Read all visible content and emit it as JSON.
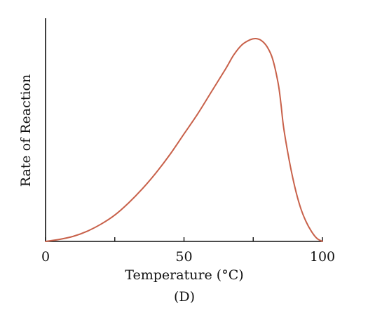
{
  "chart_data": {
    "type": "line",
    "title": "",
    "xlabel": "Temperature (°C)",
    "ylabel": "Rate of Reaction",
    "caption": "(D)",
    "xlim": [
      0,
      100
    ],
    "ylim": [
      0,
      1
    ],
    "x_ticks": [
      0,
      25,
      50,
      75,
      100
    ],
    "x_tick_labels": [
      "0",
      "",
      "50",
      "",
      "100"
    ],
    "grid": false,
    "legend": "none",
    "colors": {
      "curve": "#c8614a",
      "axis": "#111111"
    },
    "series": [
      {
        "x": [
          0,
          5,
          10,
          15,
          20,
          25,
          30,
          35,
          40,
          45,
          50,
          55,
          60,
          65,
          68,
          71,
          74,
          76,
          78,
          80,
          82,
          84,
          85,
          86,
          88,
          90,
          92,
          94,
          96,
          98,
          100
        ],
        "y": [
          0,
          0.01,
          0.025,
          0.05,
          0.085,
          0.13,
          0.19,
          0.26,
          0.34,
          0.43,
          0.53,
          0.63,
          0.74,
          0.85,
          0.92,
          0.97,
          0.995,
          1.0,
          0.99,
          0.96,
          0.9,
          0.78,
          0.68,
          0.56,
          0.4,
          0.27,
          0.17,
          0.1,
          0.05,
          0.015,
          0
        ]
      }
    ]
  }
}
